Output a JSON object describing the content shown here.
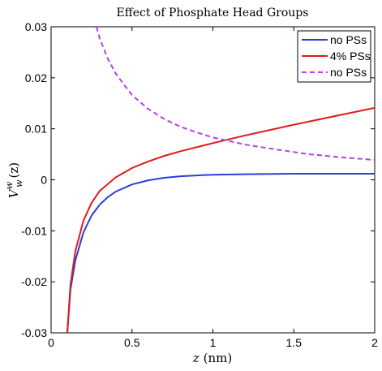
{
  "chart_data": {
    "type": "line",
    "title": "Effect of Phosphate Head Groups",
    "xlabel": "z (nm)",
    "xlabel_var": "z",
    "xlabel_unit": "(nm)",
    "ylabel": "V_w^w(z)",
    "ylabel_main": "V",
    "ylabel_sub": "w",
    "ylabel_sup": "w",
    "ylabel_arg": "(z)",
    "xlim": [
      0,
      2
    ],
    "ylim": [
      -0.03,
      0.03
    ],
    "x_ticks": [
      0,
      0.5,
      1,
      1.5,
      2
    ],
    "x_tick_labels": [
      "0",
      "0.5",
      "1",
      "1.5",
      "2"
    ],
    "y_ticks": [
      -0.03,
      -0.02,
      -0.01,
      0,
      0.01,
      0.02,
      0.03
    ],
    "y_tick_labels": [
      "-0.03",
      "-0.02",
      "-0.01",
      "0",
      "0.01",
      "0.02",
      "0.03"
    ],
    "grid": false,
    "legend_position": "top-right",
    "series": [
      {
        "name": "no PSs",
        "color": "#2b3fd8",
        "dash": "solid",
        "x": [
          0.1,
          0.12,
          0.15,
          0.2,
          0.25,
          0.3,
          0.35,
          0.4,
          0.5,
          0.6,
          0.7,
          0.8,
          1.0,
          1.2,
          1.5,
          1.8,
          2.0
        ],
        "y": [
          -0.03,
          -0.0215,
          -0.0158,
          -0.0103,
          -0.007,
          -0.0049,
          -0.0034,
          -0.0023,
          -0.0009,
          -0.0001,
          0.0004,
          0.0007,
          0.001,
          0.0011,
          0.0012,
          0.0012,
          0.0012
        ]
      },
      {
        "name": "4% PSs",
        "color": "#e01a1a",
        "dash": "solid",
        "x": [
          0.1,
          0.12,
          0.15,
          0.2,
          0.25,
          0.3,
          0.4,
          0.5,
          0.6,
          0.7,
          0.8,
          1.0,
          1.2,
          1.5,
          1.8,
          2.0
        ],
        "y": [
          -0.03,
          -0.0205,
          -0.014,
          -0.008,
          -0.0045,
          -0.0022,
          0.0005,
          0.0023,
          0.0036,
          0.0047,
          0.0056,
          0.0072,
          0.0087,
          0.0108,
          0.0128,
          0.0141
        ]
      },
      {
        "name": "no PSs",
        "color": "#b33ff0",
        "dash": "dashed",
        "x": [
          0.28,
          0.3,
          0.35,
          0.4,
          0.5,
          0.6,
          0.7,
          0.8,
          0.9,
          1.0,
          1.2,
          1.4,
          1.6,
          1.8,
          2.0
        ],
        "y": [
          0.03,
          0.0278,
          0.0238,
          0.0208,
          0.0166,
          0.0139,
          0.0119,
          0.0104,
          0.0093,
          0.0083,
          0.0069,
          0.0059,
          0.005,
          0.0044,
          0.0039
        ]
      }
    ]
  }
}
